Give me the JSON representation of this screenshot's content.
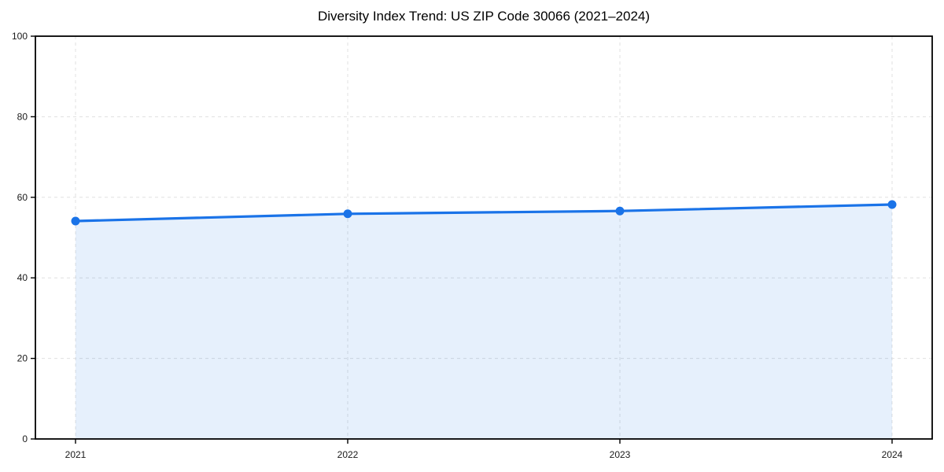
{
  "page": {
    "background_color": "#ffffff"
  },
  "chart_data": {
    "type": "area",
    "title": "Diversity Index Trend: US ZIP Code 30066 (2021–2024)",
    "categories": [
      "2021",
      "2022",
      "2023",
      "2024"
    ],
    "series": [
      {
        "name": "Diversity Index",
        "values": [
          54.1,
          55.9,
          56.6,
          58.2
        ]
      }
    ],
    "xlabel": "",
    "ylabel": "",
    "ylim": [
      0,
      100
    ],
    "yticks": [
      0,
      20,
      40,
      60,
      80,
      100
    ],
    "grid": "dashed",
    "legend": "none",
    "marker": "circle",
    "colors": {
      "line": "#1a73e8",
      "marker_fill": "#1a73e8",
      "area_fill": "#1a73e8",
      "area_opacity": 0.11,
      "grid": "#e0e0e0",
      "spine": "#000000",
      "tick_label": "#1a1a1a",
      "title": "#000000"
    }
  }
}
